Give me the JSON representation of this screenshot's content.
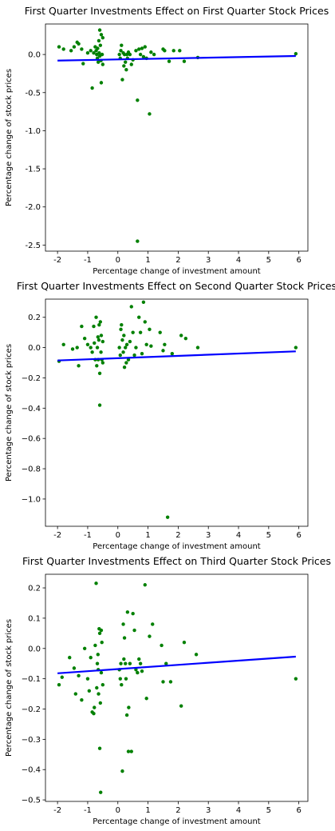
{
  "chart_data": [
    {
      "type": "scatter",
      "title": "First Quarter Investments Effect on First Quarter Stock Prices",
      "xlabel": "Percentage change of investment amount",
      "ylabel": "Percentage change of stock prices",
      "xlim": [
        -2.4,
        6.3
      ],
      "ylim": [
        -2.58,
        0.4
      ],
      "xticks": [
        -2,
        -1,
        0,
        1,
        2,
        3,
        4,
        5,
        6
      ],
      "yticks": [
        0.0,
        -0.5,
        -1.0,
        -1.5,
        -2.0,
        -2.5
      ],
      "ytick_labels": [
        "0.0",
        "-0.5",
        "-1.0",
        "-1.5",
        "-2.0",
        "-2.5"
      ],
      "point_color": "#008000",
      "line_color": "#0000ff",
      "trendline": {
        "x": [
          -2.0,
          5.9
        ],
        "y": [
          -0.08,
          -0.02
        ]
      },
      "points": [
        [
          -1.95,
          0.1
        ],
        [
          -1.8,
          0.07
        ],
        [
          -1.55,
          0.05
        ],
        [
          -1.45,
          0.1
        ],
        [
          -1.35,
          0.16
        ],
        [
          -1.3,
          0.14
        ],
        [
          -1.2,
          0.07
        ],
        [
          -1.15,
          -0.12
        ],
        [
          -1.0,
          0.02
        ],
        [
          -0.9,
          0.05
        ],
        [
          -0.85,
          -0.44
        ],
        [
          -0.8,
          0.02
        ],
        [
          -0.75,
          0.1
        ],
        [
          -0.72,
          0.05
        ],
        [
          -0.7,
          0.0
        ],
        [
          -0.68,
          -0.05
        ],
        [
          -0.67,
          0.08
        ],
        [
          -0.65,
          -0.1
        ],
        [
          -0.63,
          0.18
        ],
        [
          -0.62,
          0.02
        ],
        [
          -0.6,
          -0.02
        ],
        [
          -0.6,
          0.32
        ],
        [
          -0.58,
          0.12
        ],
        [
          -0.56,
          -0.08
        ],
        [
          -0.55,
          0.26
        ],
        [
          -0.55,
          -0.37
        ],
        [
          -0.52,
          0.0
        ],
        [
          -0.5,
          0.22
        ],
        [
          -0.5,
          -0.13
        ],
        [
          0.05,
          0.0
        ],
        [
          0.08,
          -0.05
        ],
        [
          0.1,
          0.05
        ],
        [
          0.12,
          0.12
        ],
        [
          0.15,
          -0.33
        ],
        [
          0.18,
          0.02
        ],
        [
          0.2,
          -0.15
        ],
        [
          0.22,
          0.0
        ],
        [
          0.25,
          -0.1
        ],
        [
          0.28,
          -0.2
        ],
        [
          0.3,
          0.0
        ],
        [
          0.32,
          -0.05
        ],
        [
          0.35,
          0.03
        ],
        [
          0.4,
          0.0
        ],
        [
          0.45,
          -0.13
        ],
        [
          0.5,
          -0.07
        ],
        [
          0.6,
          0.05
        ],
        [
          0.65,
          -0.6
        ],
        [
          0.7,
          0.07
        ],
        [
          0.75,
          0.0
        ],
        [
          0.8,
          0.08
        ],
        [
          0.85,
          -0.03
        ],
        [
          0.9,
          0.1
        ],
        [
          0.95,
          -0.05
        ],
        [
          1.05,
          -0.78
        ],
        [
          1.1,
          0.03
        ],
        [
          1.2,
          0.0
        ],
        [
          1.5,
          0.07
        ],
        [
          1.55,
          0.05
        ],
        [
          1.7,
          -0.09
        ],
        [
          1.85,
          0.05
        ],
        [
          2.05,
          0.05
        ],
        [
          2.2,
          -0.09
        ],
        [
          2.65,
          -0.04
        ],
        [
          5.9,
          0.01
        ],
        [
          0.65,
          -2.45
        ]
      ]
    },
    {
      "type": "scatter",
      "title": "First Quarter Investments Effect on Second Quarter Stock Prices",
      "xlabel": "Percentage change of investment amount",
      "ylabel": "Percentage change of stock prices",
      "xlim": [
        -2.4,
        6.3
      ],
      "ylim": [
        -1.18,
        0.32
      ],
      "xticks": [
        -2,
        -1,
        0,
        1,
        2,
        3,
        4,
        5,
        6
      ],
      "yticks": [
        0.2,
        0.0,
        -0.2,
        -0.4,
        -0.6,
        -0.8,
        -1.0
      ],
      "ytick_labels": [
        "0.2",
        "0.0",
        "−0.2",
        "−0.4",
        "−0.6",
        "−0.8",
        "−1.0"
      ],
      "point_color": "#008000",
      "line_color": "#0000ff",
      "trendline": {
        "x": [
          -2.0,
          5.9
        ],
        "y": [
          -0.085,
          -0.025
        ]
      },
      "points": [
        [
          -1.95,
          -0.09
        ],
        [
          -1.8,
          0.02
        ],
        [
          -1.5,
          -0.01
        ],
        [
          -1.35,
          0.0
        ],
        [
          -1.3,
          -0.12
        ],
        [
          -1.2,
          0.14
        ],
        [
          -1.1,
          0.06
        ],
        [
          -1.0,
          0.02
        ],
        [
          -0.9,
          0.0
        ],
        [
          -0.85,
          -0.03
        ],
        [
          -0.8,
          0.14
        ],
        [
          -0.78,
          0.03
        ],
        [
          -0.75,
          -0.08
        ],
        [
          -0.72,
          0.2
        ],
        [
          -0.7,
          -0.12
        ],
        [
          -0.68,
          0.0
        ],
        [
          -0.66,
          0.07
        ],
        [
          -0.65,
          -0.08
        ],
        [
          -0.63,
          0.05
        ],
        [
          -0.62,
          0.15
        ],
        [
          -0.6,
          -0.17
        ],
        [
          -0.6,
          -0.38
        ],
        [
          -0.58,
          0.17
        ],
        [
          -0.56,
          -0.03
        ],
        [
          -0.55,
          0.08
        ],
        [
          -0.53,
          -0.08
        ],
        [
          -0.5,
          0.04
        ],
        [
          -0.5,
          -0.1
        ],
        [
          0.05,
          0.0
        ],
        [
          0.08,
          -0.05
        ],
        [
          0.1,
          0.12
        ],
        [
          0.12,
          0.15
        ],
        [
          0.15,
          0.05
        ],
        [
          0.18,
          -0.03
        ],
        [
          0.2,
          0.08
        ],
        [
          0.22,
          -0.13
        ],
        [
          0.25,
          0.0
        ],
        [
          0.28,
          -0.1
        ],
        [
          0.3,
          0.02
        ],
        [
          0.35,
          -0.08
        ],
        [
          0.4,
          0.04
        ],
        [
          0.45,
          0.27
        ],
        [
          0.5,
          0.1
        ],
        [
          0.55,
          -0.05
        ],
        [
          0.6,
          0.0
        ],
        [
          0.7,
          0.2
        ],
        [
          0.75,
          0.1
        ],
        [
          0.8,
          -0.04
        ],
        [
          0.85,
          0.3
        ],
        [
          0.9,
          0.17
        ],
        [
          0.95,
          0.02
        ],
        [
          1.05,
          0.12
        ],
        [
          1.1,
          0.01
        ],
        [
          1.4,
          0.1
        ],
        [
          1.5,
          -0.02
        ],
        [
          1.55,
          0.02
        ],
        [
          1.8,
          -0.04
        ],
        [
          2.1,
          0.08
        ],
        [
          2.25,
          0.06
        ],
        [
          2.65,
          0.0
        ],
        [
          5.9,
          0.0
        ],
        [
          1.65,
          -1.12
        ]
      ]
    },
    {
      "type": "scatter",
      "title": "First Quarter Investments Effect on Third Quarter Stock Prices",
      "xlabel": "Percentage change of investment amount",
      "ylabel": "Percentage change of stock prices",
      "xlim": [
        -2.4,
        6.3
      ],
      "ylim": [
        -0.505,
        0.245
      ],
      "xticks": [
        -2,
        -1,
        0,
        1,
        2,
        3,
        4,
        5,
        6
      ],
      "yticks": [
        0.2,
        0.1,
        0.0,
        -0.1,
        -0.2,
        -0.3,
        -0.4,
        -0.5
      ],
      "ytick_labels": [
        "0.2",
        "0.1",
        "0.0",
        "−0.1",
        "−0.2",
        "−0.3",
        "−0.4",
        "−0.5"
      ],
      "point_color": "#008000",
      "line_color": "#0000ff",
      "trendline": {
        "x": [
          -2.0,
          5.9
        ],
        "y": [
          -0.082,
          -0.027
        ]
      },
      "points": [
        [
          -1.95,
          -0.12
        ],
        [
          -1.85,
          -0.095
        ],
        [
          -1.6,
          -0.03
        ],
        [
          -1.45,
          -0.065
        ],
        [
          -1.4,
          -0.15
        ],
        [
          -1.3,
          -0.09
        ],
        [
          -1.2,
          -0.17
        ],
        [
          -1.1,
          0.0
        ],
        [
          -1.0,
          -0.1
        ],
        [
          -0.95,
          -0.14
        ],
        [
          -0.9,
          -0.03
        ],
        [
          -0.85,
          -0.21
        ],
        [
          -0.8,
          -0.215
        ],
        [
          -0.78,
          -0.195
        ],
        [
          -0.75,
          0.01
        ],
        [
          -0.72,
          0.215
        ],
        [
          -0.7,
          -0.13
        ],
        [
          -0.68,
          -0.05
        ],
        [
          -0.66,
          -0.02
        ],
        [
          -0.65,
          -0.07
        ],
        [
          -0.64,
          -0.15
        ],
        [
          -0.62,
          0.065
        ],
        [
          -0.6,
          0.05
        ],
        [
          -0.6,
          -0.33
        ],
        [
          -0.58,
          -0.18
        ],
        [
          -0.57,
          -0.475
        ],
        [
          -0.55,
          0.06
        ],
        [
          -0.55,
          -0.08
        ],
        [
          -0.53,
          0.02
        ],
        [
          -0.5,
          -0.12
        ],
        [
          0.05,
          -0.07
        ],
        [
          0.08,
          -0.1
        ],
        [
          0.1,
          -0.05
        ],
        [
          0.12,
          -0.12
        ],
        [
          0.15,
          -0.405
        ],
        [
          0.18,
          0.08
        ],
        [
          0.2,
          -0.035
        ],
        [
          0.22,
          0.035
        ],
        [
          0.25,
          -0.05
        ],
        [
          0.27,
          -0.1
        ],
        [
          0.3,
          -0.22
        ],
        [
          0.32,
          0.12
        ],
        [
          0.35,
          -0.34
        ],
        [
          0.36,
          -0.195
        ],
        [
          0.4,
          -0.05
        ],
        [
          0.45,
          -0.34
        ],
        [
          0.5,
          0.115
        ],
        [
          0.55,
          0.06
        ],
        [
          0.6,
          -0.07
        ],
        [
          0.65,
          -0.08
        ],
        [
          0.7,
          -0.035
        ],
        [
          0.75,
          -0.05
        ],
        [
          0.8,
          -0.075
        ],
        [
          0.9,
          0.21
        ],
        [
          0.95,
          -0.165
        ],
        [
          1.05,
          0.04
        ],
        [
          1.15,
          0.08
        ],
        [
          1.45,
          0.01
        ],
        [
          1.5,
          -0.11
        ],
        [
          1.6,
          -0.05
        ],
        [
          1.75,
          -0.11
        ],
        [
          2.1,
          -0.19
        ],
        [
          2.2,
          0.02
        ],
        [
          2.6,
          -0.02
        ],
        [
          5.9,
          -0.1
        ]
      ]
    }
  ]
}
